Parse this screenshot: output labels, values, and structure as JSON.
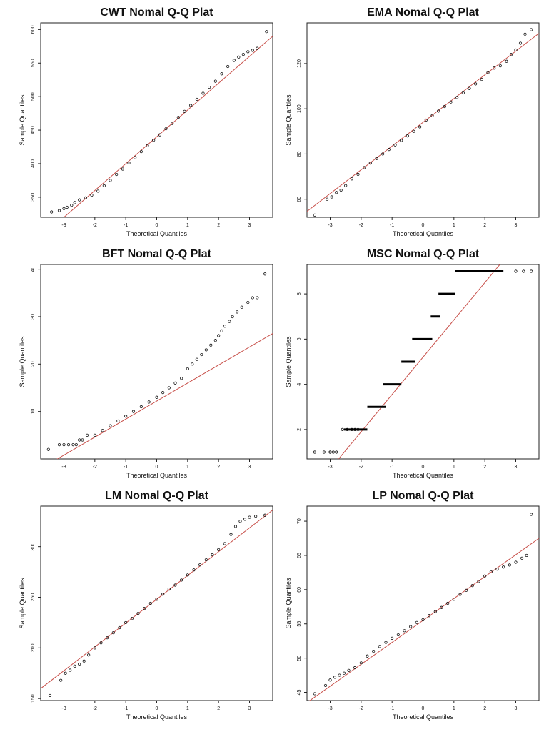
{
  "figure": {
    "panels": [
      {
        "title": "CWT Nomal Q-Q Plat",
        "xlabel": "Theoretical Quantiles",
        "ylabel": "Sample Quantiles"
      },
      {
        "title": "EMA Nomal Q-Q Plat",
        "xlabel": "Theoretical Quantiles",
        "ylabel": "Sample Quantiles"
      },
      {
        "title": "BFT Nomal Q-Q Plat",
        "xlabel": "Theoretical Quantiles",
        "ylabel": "Sample Quantiles"
      },
      {
        "title": "MSC Nomal Q-Q Plat",
        "xlabel": "Theoretical Quantiles",
        "ylabel": "Sample Quantiles"
      },
      {
        "title": "LM Nomal Q-Q Plat",
        "xlabel": "Theoretical Quantiles",
        "ylabel": "Sample Quantiles"
      },
      {
        "title": "LP Nomal Q-Q Plat",
        "xlabel": "Theoretical Quantiles",
        "ylabel": "Sample Quantiles"
      }
    ]
  },
  "chart_data": [
    {
      "type": "scatter",
      "title": "CWT Nomal Q-Q Plat",
      "xlabel": "Theoretical Quantiles",
      "ylabel": "Sample Quantiles",
      "xlim": [
        -3.75,
        3.75
      ],
      "ylim": [
        320,
        610
      ],
      "xticks": [
        -3,
        -2,
        -1,
        0,
        1,
        2,
        3
      ],
      "yticks": [
        350,
        400,
        450,
        500,
        550,
        600
      ],
      "reference_line": {
        "intercept": 440,
        "slope": 40
      },
      "points": [
        [
          -3.4,
          328
        ],
        [
          -3.15,
          330
        ],
        [
          -3.0,
          333
        ],
        [
          -2.9,
          335
        ],
        [
          -2.75,
          338
        ],
        [
          -2.65,
          342
        ],
        [
          -2.5,
          346
        ],
        [
          -2.3,
          349
        ],
        [
          -2.1,
          353
        ],
        [
          -1.9,
          359
        ],
        [
          -1.7,
          367
        ],
        [
          -1.5,
          375
        ],
        [
          -1.3,
          384
        ],
        [
          -1.1,
          392
        ],
        [
          -0.9,
          401
        ],
        [
          -0.7,
          409
        ],
        [
          -0.5,
          418
        ],
        [
          -0.3,
          427
        ],
        [
          -0.1,
          435
        ],
        [
          0.1,
          443
        ],
        [
          0.3,
          452
        ],
        [
          0.5,
          460
        ],
        [
          0.7,
          469
        ],
        [
          0.9,
          478
        ],
        [
          1.1,
          487
        ],
        [
          1.3,
          496
        ],
        [
          1.5,
          505
        ],
        [
          1.7,
          514
        ],
        [
          1.9,
          523
        ],
        [
          2.1,
          534
        ],
        [
          2.3,
          545
        ],
        [
          2.5,
          554
        ],
        [
          2.65,
          559
        ],
        [
          2.8,
          563
        ],
        [
          2.95,
          567
        ],
        [
          3.1,
          569
        ],
        [
          3.25,
          572
        ],
        [
          3.55,
          597
        ]
      ]
    },
    {
      "type": "scatter",
      "title": "EMA Nomal Q-Q Plat",
      "xlabel": "Theoretical Quantiles",
      "ylabel": "Sample Quantiles",
      "xlim": [
        -3.75,
        3.75
      ],
      "ylim": [
        52,
        138
      ],
      "xticks": [
        -3,
        -2,
        -1,
        0,
        1,
        2,
        3
      ],
      "yticks": [
        60,
        80,
        100,
        120
      ],
      "reference_line": {
        "intercept": 94,
        "slope": 10.5
      },
      "points": [
        [
          -3.5,
          53
        ],
        [
          -3.1,
          60
        ],
        [
          -2.95,
          61
        ],
        [
          -2.8,
          63
        ],
        [
          -2.65,
          64
        ],
        [
          -2.5,
          66
        ],
        [
          -2.3,
          69
        ],
        [
          -2.1,
          71
        ],
        [
          -1.9,
          74
        ],
        [
          -1.7,
          76
        ],
        [
          -1.5,
          78
        ],
        [
          -1.3,
          80
        ],
        [
          -1.1,
          82
        ],
        [
          -0.9,
          84
        ],
        [
          -0.7,
          86
        ],
        [
          -0.5,
          88
        ],
        [
          -0.3,
          90
        ],
        [
          -0.1,
          92
        ],
        [
          0.1,
          95
        ],
        [
          0.3,
          97
        ],
        [
          0.5,
          99
        ],
        [
          0.7,
          101
        ],
        [
          0.9,
          103
        ],
        [
          1.1,
          105
        ],
        [
          1.3,
          107
        ],
        [
          1.5,
          109
        ],
        [
          1.7,
          111
        ],
        [
          1.9,
          113
        ],
        [
          2.1,
          116
        ],
        [
          2.3,
          118
        ],
        [
          2.5,
          119
        ],
        [
          2.7,
          121
        ],
        [
          2.85,
          124
        ],
        [
          3.0,
          126
        ],
        [
          3.15,
          129
        ],
        [
          3.3,
          133
        ],
        [
          3.5,
          135
        ]
      ]
    },
    {
      "type": "scatter",
      "title": "BFT Nomal Q-Q Plat",
      "xlabel": "Theoretical Quantiles",
      "ylabel": "Sample Quantiles",
      "xlim": [
        -3.75,
        3.75
      ],
      "ylim": [
        0,
        41
      ],
      "xticks": [
        -3,
        -2,
        -1,
        0,
        1,
        2,
        3
      ],
      "yticks": [
        10,
        20,
        30,
        40
      ],
      "reference_line": {
        "intercept": 12.2,
        "slope": 3.8
      },
      "points": [
        [
          -3.5,
          2
        ],
        [
          -3.15,
          3
        ],
        [
          -3.0,
          3
        ],
        [
          -2.85,
          3
        ],
        [
          -2.7,
          3
        ],
        [
          -2.6,
          3
        ],
        [
          -2.5,
          4
        ],
        [
          -2.4,
          4
        ],
        [
          -2.25,
          5
        ],
        [
          -2.0,
          5
        ],
        [
          -1.75,
          6
        ],
        [
          -1.5,
          7
        ],
        [
          -1.25,
          8
        ],
        [
          -1.0,
          9
        ],
        [
          -0.75,
          10
        ],
        [
          -0.5,
          11
        ],
        [
          -0.25,
          12
        ],
        [
          0.0,
          13
        ],
        [
          0.2,
          14
        ],
        [
          0.4,
          15
        ],
        [
          0.6,
          16
        ],
        [
          0.8,
          17
        ],
        [
          1.0,
          19
        ],
        [
          1.15,
          20
        ],
        [
          1.3,
          21
        ],
        [
          1.45,
          22
        ],
        [
          1.6,
          23
        ],
        [
          1.75,
          24
        ],
        [
          1.9,
          25
        ],
        [
          2.0,
          26
        ],
        [
          2.1,
          27
        ],
        [
          2.2,
          28
        ],
        [
          2.35,
          29
        ],
        [
          2.45,
          30
        ],
        [
          2.6,
          31
        ],
        [
          2.75,
          32
        ],
        [
          2.95,
          33
        ],
        [
          3.1,
          34
        ],
        [
          3.25,
          34
        ],
        [
          3.5,
          39
        ]
      ]
    },
    {
      "type": "scatter",
      "title": "MSC Nomal Q-Q Plat",
      "xlabel": "Theoretical Quantiles",
      "ylabel": "Sample Quantiles",
      "xlim": [
        -3.75,
        3.75
      ],
      "ylim": [
        0.7,
        9.3
      ],
      "xticks": [
        -3,
        -2,
        -1,
        0,
        1,
        2,
        3
      ],
      "yticks": [
        2,
        4,
        6,
        8
      ],
      "reference_line": {
        "intercept": 5.2,
        "slope": 1.65
      },
      "points": [
        [
          -3.5,
          1
        ],
        [
          -3.2,
          1
        ],
        [
          -3.0,
          1
        ],
        [
          -2.9,
          1
        ],
        [
          -2.8,
          1
        ],
        [
          -2.6,
          2
        ],
        [
          -2.45,
          2
        ],
        [
          -2.3,
          2
        ],
        [
          -2.2,
          2
        ],
        [
          -2.1,
          2
        ],
        [
          -3.0,
          1
        ],
        [
          3.0,
          9
        ],
        [
          3.25,
          9
        ],
        [
          3.5,
          9
        ]
      ],
      "steps": [
        {
          "y": 2,
          "x0": -2.55,
          "x1": -1.8
        },
        {
          "y": 3,
          "x0": -1.8,
          "x1": -1.2
        },
        {
          "y": 4,
          "x0": -1.3,
          "x1": -0.7
        },
        {
          "y": 5,
          "x0": -0.7,
          "x1": -0.25
        },
        {
          "y": 6,
          "x0": -0.35,
          "x1": 0.3
        },
        {
          "y": 7,
          "x0": 0.25,
          "x1": 0.55
        },
        {
          "y": 8,
          "x0": 0.5,
          "x1": 1.05
        },
        {
          "y": 9,
          "x0": 1.05,
          "x1": 2.6
        }
      ]
    },
    {
      "type": "scatter",
      "title": "LM Nomal Q-Q Plat",
      "xlabel": "Theoretical Quantiles",
      "ylabel": "Sample Quantiles",
      "xlim": [
        -3.75,
        3.75
      ],
      "ylim": [
        148,
        340
      ],
      "xticks": [
        -3,
        -2,
        -1,
        0,
        1,
        2,
        3
      ],
      "yticks": [
        150,
        200,
        250,
        300
      ],
      "reference_line": {
        "intercept": 248,
        "slope": 23.5
      },
      "points": [
        [
          -3.45,
          153
        ],
        [
          -3.1,
          168
        ],
        [
          -2.95,
          175
        ],
        [
          -2.8,
          178
        ],
        [
          -2.65,
          182
        ],
        [
          -2.5,
          184
        ],
        [
          -2.35,
          187
        ],
        [
          -2.2,
          193
        ],
        [
          -2.0,
          200
        ],
        [
          -1.8,
          205
        ],
        [
          -1.6,
          210
        ],
        [
          -1.4,
          215
        ],
        [
          -1.2,
          220
        ],
        [
          -1.0,
          225
        ],
        [
          -0.8,
          229
        ],
        [
          -0.6,
          234
        ],
        [
          -0.4,
          239
        ],
        [
          -0.2,
          244
        ],
        [
          0.0,
          248
        ],
        [
          0.2,
          253
        ],
        [
          0.4,
          258
        ],
        [
          0.6,
          262
        ],
        [
          0.8,
          267
        ],
        [
          1.0,
          272
        ],
        [
          1.2,
          277
        ],
        [
          1.4,
          282
        ],
        [
          1.6,
          287
        ],
        [
          1.8,
          292
        ],
        [
          2.0,
          297
        ],
        [
          2.2,
          303
        ],
        [
          2.4,
          312
        ],
        [
          2.55,
          320
        ],
        [
          2.7,
          325
        ],
        [
          2.85,
          327
        ],
        [
          3.0,
          329
        ],
        [
          3.2,
          330
        ],
        [
          3.5,
          331
        ]
      ]
    },
    {
      "type": "scatter",
      "title": "LP Nomal Q-Q Plat",
      "xlabel": "Theoretical Quantiles",
      "ylabel": "Sample Quantiles",
      "xlim": [
        -3.75,
        3.75
      ],
      "ylim": [
        43.8,
        72.2
      ],
      "xticks": [
        -3,
        -2,
        -1,
        0,
        1,
        2,
        3
      ],
      "yticks": [
        45,
        50,
        55,
        60,
        65,
        70
      ],
      "reference_line": {
        "intercept": 55.5,
        "slope": 3.2
      },
      "points": [
        [
          -3.5,
          44.8
        ],
        [
          -3.15,
          46.0
        ],
        [
          -3.0,
          46.8
        ],
        [
          -2.85,
          47.2
        ],
        [
          -2.7,
          47.5
        ],
        [
          -2.55,
          47.8
        ],
        [
          -2.4,
          48.2
        ],
        [
          -2.2,
          48.6
        ],
        [
          -2.0,
          49.3
        ],
        [
          -1.8,
          50.3
        ],
        [
          -1.6,
          51.0
        ],
        [
          -1.4,
          51.7
        ],
        [
          -1.2,
          52.3
        ],
        [
          -1.0,
          52.9
        ],
        [
          -0.8,
          53.4
        ],
        [
          -0.6,
          54.0
        ],
        [
          -0.4,
          54.6
        ],
        [
          -0.2,
          55.2
        ],
        [
          0.0,
          55.6
        ],
        [
          0.2,
          56.2
        ],
        [
          0.4,
          56.8
        ],
        [
          0.6,
          57.4
        ],
        [
          0.8,
          58.0
        ],
        [
          1.0,
          58.6
        ],
        [
          1.2,
          59.3
        ],
        [
          1.4,
          59.9
        ],
        [
          1.6,
          60.6
        ],
        [
          1.8,
          61.2
        ],
        [
          2.0,
          62.0
        ],
        [
          2.2,
          62.6
        ],
        [
          2.4,
          63.0
        ],
        [
          2.6,
          63.3
        ],
        [
          2.8,
          63.6
        ],
        [
          3.0,
          64.0
        ],
        [
          3.2,
          64.6
        ],
        [
          3.35,
          65.0
        ],
        [
          3.5,
          71.0
        ]
      ]
    }
  ]
}
